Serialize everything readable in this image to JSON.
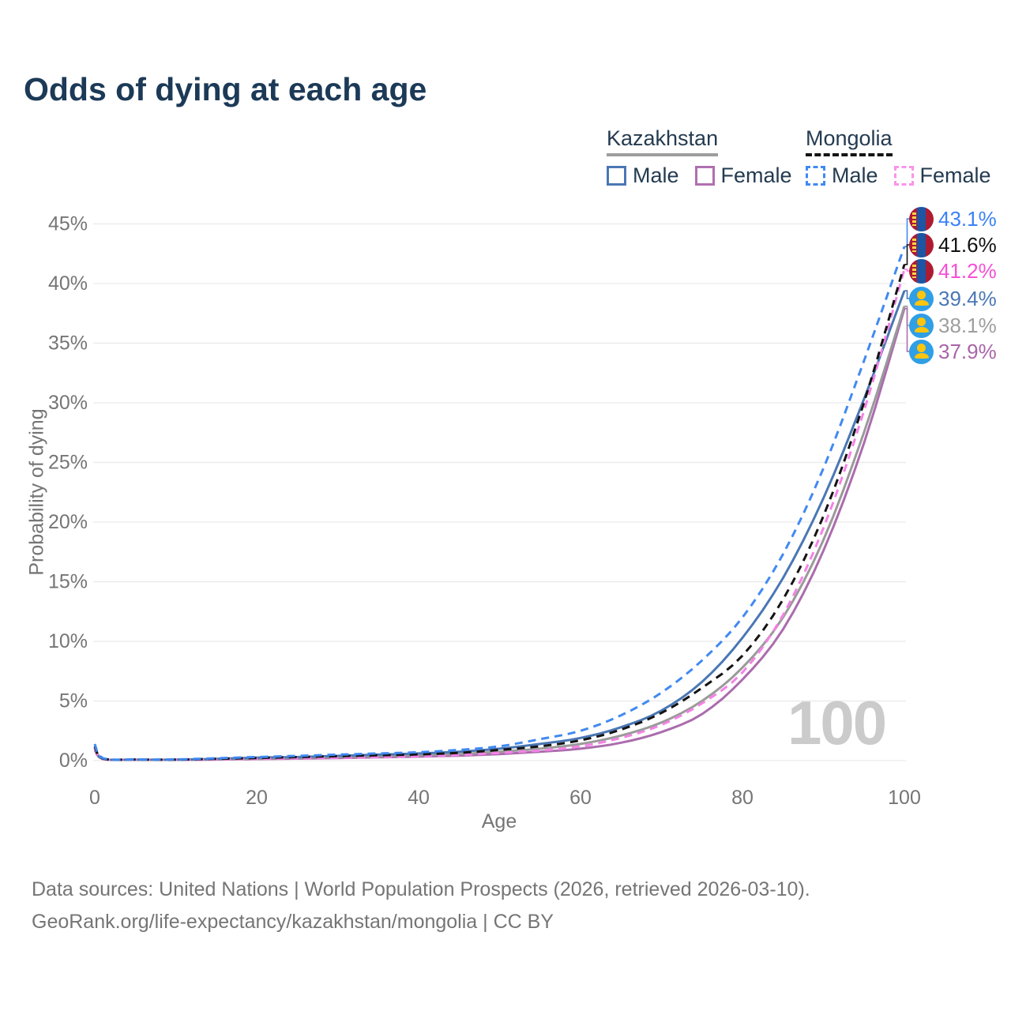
{
  "title": "Odds of dying at each age",
  "legend": {
    "groups": [
      {
        "country": "Kazakhstan",
        "line_style": "solid",
        "underline_color": "#9e9e9e",
        "items": [
          {
            "label": "Male",
            "color": "#4a77b4"
          },
          {
            "label": "Female",
            "color": "#b070b0"
          }
        ]
      },
      {
        "country": "Mongolia",
        "line_style": "dashed",
        "underline_color": "#141414",
        "items": [
          {
            "label": "Male",
            "color": "#4189f2"
          },
          {
            "label": "Female",
            "color": "#fb93ea"
          }
        ]
      }
    ]
  },
  "chart_data": {
    "type": "line",
    "title": "Odds of dying at each age",
    "xlabel": "Age",
    "ylabel": "Probability of dying",
    "xlim": [
      0,
      100
    ],
    "ylim_pct": [
      0,
      45
    ],
    "grid": "horizontal",
    "legend_position": "top-right",
    "x_ticks": [
      0,
      20,
      40,
      60,
      80,
      100
    ],
    "y_ticks_pct": [
      0,
      5,
      10,
      15,
      20,
      25,
      30,
      35,
      40,
      45
    ],
    "y_tick_labels": [
      "0%",
      "5%",
      "10%",
      "15%",
      "20%",
      "25%",
      "30%",
      "35%",
      "40%",
      "45%"
    ],
    "ages": [
      0,
      1,
      5,
      10,
      15,
      20,
      25,
      30,
      35,
      40,
      45,
      50,
      55,
      60,
      65,
      70,
      75,
      80,
      85,
      90,
      95,
      100
    ],
    "series": [
      {
        "name": "Mongolia Male",
        "country": "Mongolia",
        "sex": "Male",
        "style": "dashed",
        "color": "#4189f2",
        "label_color": "#3b82f6",
        "end_label": "43.1%",
        "end_value_pct": 43.1,
        "values_pct": [
          1.4,
          0.2,
          0.1,
          0.1,
          0.2,
          0.3,
          0.4,
          0.5,
          0.6,
          0.7,
          0.9,
          1.2,
          1.8,
          2.5,
          3.8,
          5.7,
          8.4,
          12.0,
          17.3,
          24.5,
          33.5,
          43.1
        ]
      },
      {
        "name": "Mongolia Overall",
        "country": "Mongolia",
        "sex": "Both",
        "style": "dashed",
        "color": "#141414",
        "label_color": "#111111",
        "end_label": "41.6%",
        "end_value_pct": 41.6,
        "values_pct": [
          1.2,
          0.17,
          0.09,
          0.08,
          0.15,
          0.22,
          0.3,
          0.37,
          0.45,
          0.52,
          0.65,
          0.9,
          1.2,
          1.7,
          2.6,
          4.0,
          6.1,
          8.8,
          13.5,
          20.5,
          30.0,
          41.6
        ]
      },
      {
        "name": "Mongolia Female",
        "country": "Mongolia",
        "sex": "Female",
        "style": "dashed",
        "color": "#f582e6",
        "label_color": "#f74fd6",
        "end_label": "41.2%",
        "end_value_pct": 41.2,
        "values_pct": [
          1.05,
          0.14,
          0.08,
          0.07,
          0.1,
          0.15,
          0.2,
          0.25,
          0.3,
          0.37,
          0.47,
          0.65,
          0.85,
          1.2,
          1.9,
          3.0,
          4.8,
          7.4,
          12.2,
          19.5,
          29.3,
          41.2
        ]
      },
      {
        "name": "Kazakhstan Male",
        "country": "Kazakhstan",
        "sex": "Male",
        "style": "solid",
        "color": "#4a77b4",
        "label_color": "#4a77b4",
        "end_label": "39.4%",
        "end_value_pct": 39.4,
        "values_pct": [
          1.1,
          0.15,
          0.08,
          0.08,
          0.15,
          0.25,
          0.3,
          0.4,
          0.5,
          0.6,
          0.75,
          1.0,
          1.4,
          1.9,
          2.8,
          4.2,
          6.6,
          10.3,
          15.3,
          22.0,
          30.3,
          39.4
        ]
      },
      {
        "name": "Kazakhstan Overall",
        "country": "Kazakhstan",
        "sex": "Both",
        "style": "solid",
        "color": "#9a9a9a",
        "label_color": "#9e9e9e",
        "end_label": "38.1%",
        "end_value_pct": 38.1,
        "values_pct": [
          1.0,
          0.13,
          0.07,
          0.07,
          0.12,
          0.18,
          0.24,
          0.3,
          0.38,
          0.45,
          0.55,
          0.75,
          1.0,
          1.4,
          2.1,
          3.2,
          5.0,
          7.8,
          12.0,
          18.5,
          27.5,
          38.1
        ]
      },
      {
        "name": "Kazakhstan Female",
        "country": "Kazakhstan",
        "sex": "Female",
        "style": "solid",
        "color": "#ab6cad",
        "label_color": "#a865a8",
        "end_label": "37.9%",
        "end_value_pct": 37.9,
        "values_pct": [
          0.9,
          0.12,
          0.06,
          0.06,
          0.09,
          0.13,
          0.17,
          0.22,
          0.28,
          0.34,
          0.42,
          0.55,
          0.75,
          1.0,
          1.5,
          2.4,
          3.9,
          6.8,
          11.0,
          17.6,
          26.6,
          37.9
        ]
      }
    ]
  },
  "watermark": "100",
  "footer": {
    "line1": "Data sources: United Nations | World Population Prospects (2026, retrieved 2026-03-10).",
    "line2": "GeoRank.org/life-expectancy/kazakhstan/mongolia | CC BY"
  }
}
